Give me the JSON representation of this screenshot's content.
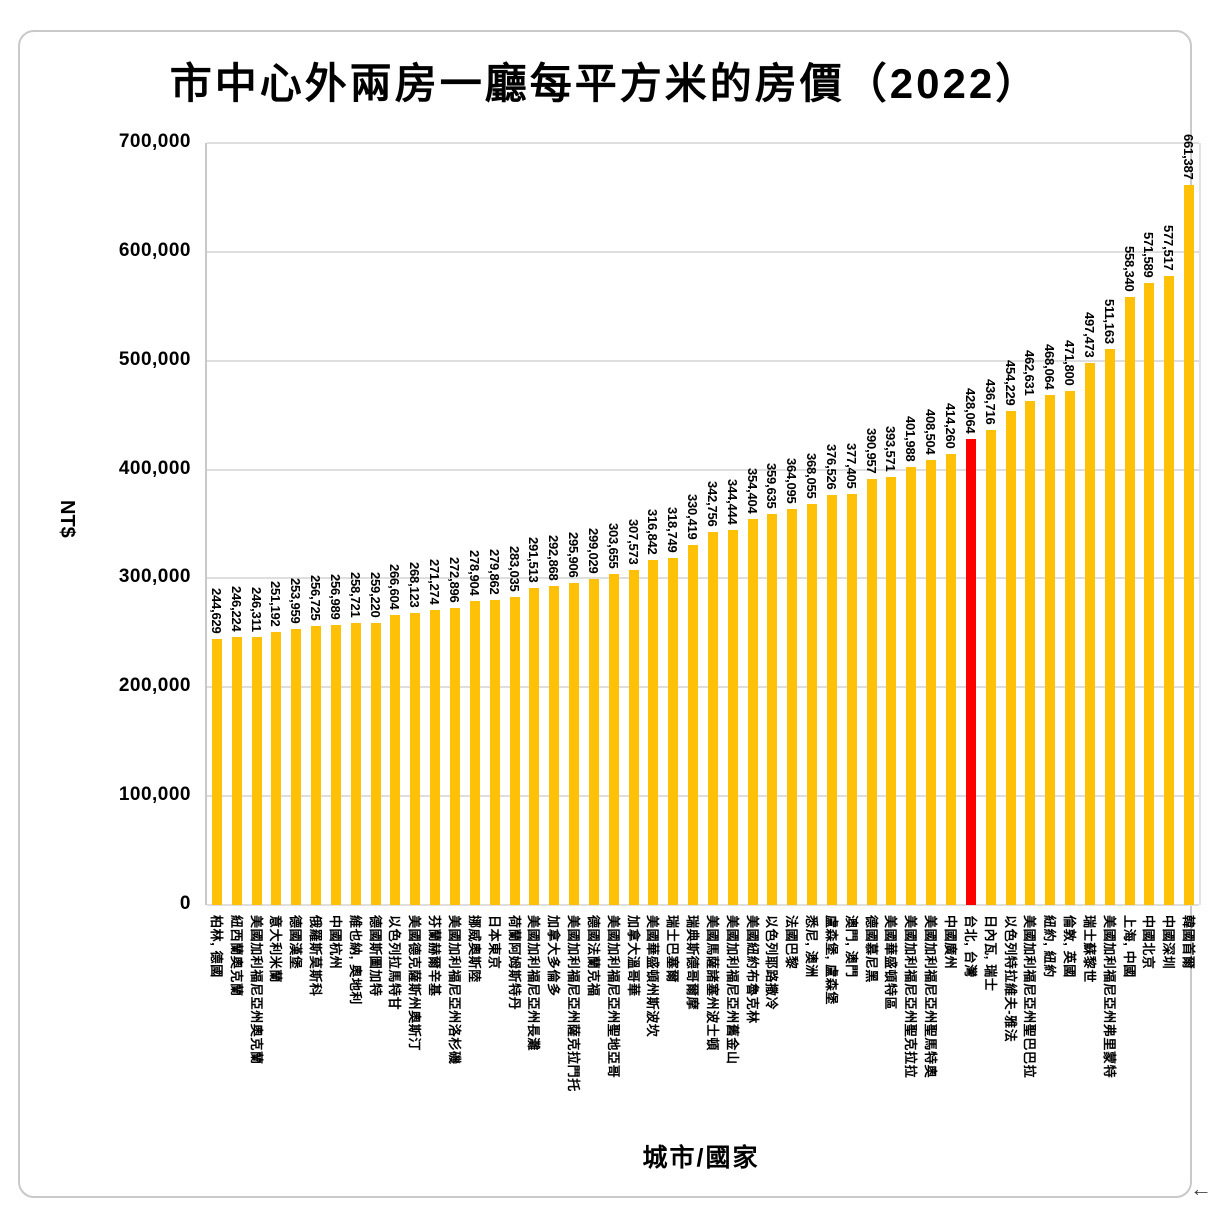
{
  "page": {
    "background": "#ffffff",
    "card_border_color": "#c9c9c9"
  },
  "chart": {
    "title": "市中心外兩房一廳每平方米的房價（2022）",
    "y_axis_title": "NT$",
    "x_axis_title": "城市/國家"
  },
  "chart_data": {
    "type": "bar",
    "title": "市中心外兩房一廳每平方米的房價（2022）",
    "xlabel": "城市/國家",
    "ylabel": "NT$",
    "ylim": [
      0,
      700000
    ],
    "grid": true,
    "legend": false,
    "bar_color": "#FFC107",
    "highlight": {
      "index": 38,
      "category": "台北, 台灣",
      "color": "#FF0000"
    },
    "y_ticks": [
      {
        "value": 0,
        "label": "0"
      },
      {
        "value": 100000,
        "label": "100,000"
      },
      {
        "value": 200000,
        "label": "200,000"
      },
      {
        "value": 300000,
        "label": "300,000"
      },
      {
        "value": 400000,
        "label": "400,000"
      },
      {
        "value": 500000,
        "label": "500,000"
      },
      {
        "value": 600000,
        "label": "600,000"
      },
      {
        "value": 700000,
        "label": "700,000"
      }
    ],
    "categories": [
      "柏林, 德國",
      "紐西蘭奧克蘭",
      "美國加利福尼亞州奧克蘭",
      "意大利米蘭",
      "德國漢堡",
      "俄羅斯莫斯科",
      "中國杭州",
      "維也納, 奧地利",
      "德國斯圖加特",
      "以色列拉馬特甘",
      "美國德克薩斯州奧斯汀",
      "芬蘭赫爾辛基",
      "美國加利福尼亞州洛杉磯",
      "挪威奧斯陸",
      "日本東京",
      "荷蘭阿姆斯特丹",
      "美國加利福尼亞州長灘",
      "加拿大多倫多",
      "美國加利福尼亞州薩克拉門托",
      "德國法蘭克福",
      "美國加利福尼亞州聖地亞哥",
      "加拿大溫哥華",
      "美國華盛頓州斯波坎",
      "瑞士巴塞爾",
      "瑞典斯德哥爾摩",
      "美國馬薩諸塞州波士頓",
      "美國加利福尼亞州舊金山",
      "美國紐約布魯克林",
      "以色列耶路撒冷",
      "法國巴黎",
      "悉尼, 澳洲",
      "盧森堡, 盧森堡",
      "澳門, 澳門",
      "德國慕尼黑",
      "美國華盛頓特區",
      "美國加利福尼亞州聖克拉拉",
      "美國加利福尼亞州聖馬特奧",
      "中國廣州",
      "台北, 台灣",
      "日內瓦, 瑞士",
      "以色列特拉維夫-雅法",
      "美國加利福尼亞州聖巴巴拉",
      "紐約, 紐約",
      "倫敦, 英國",
      "瑞士蘇黎世",
      "美國加利福尼亞州弗里蒙特",
      "上海, 中國",
      "中國北京",
      "中國深圳",
      "韓國首爾"
    ],
    "values": [
      244629,
      246224,
      246311,
      251192,
      253959,
      256725,
      256989,
      258721,
      259220,
      266604,
      268123,
      271274,
      272896,
      278904,
      279862,
      283035,
      291513,
      292868,
      295906,
      299029,
      303655,
      307573,
      316842,
      318749,
      330419,
      342756,
      344444,
      354404,
      359635,
      364095,
      368055,
      376526,
      377405,
      390957,
      393571,
      401988,
      408504,
      414260,
      428064,
      436716,
      454229,
      462631,
      468064,
      471800,
      497473,
      511163,
      558340,
      571589,
      577517,
      661387
    ],
    "value_labels": [
      "244,629",
      "246,224",
      "246,311",
      "251,192",
      "253,959",
      "256,725",
      "256,989",
      "258,721",
      "259,220",
      "266,604",
      "268,123",
      "271,274",
      "272,896",
      "278,904",
      "279,862",
      "283,035",
      "291,513",
      "292,868",
      "295,906",
      "299,029",
      "303,655",
      "307,573",
      "316,842",
      "318,749",
      "330,419",
      "342,756",
      "344,444",
      "354,404",
      "359,635",
      "364,095",
      "368,055",
      "376,526",
      "377,405",
      "390,957",
      "393,571",
      "401,988",
      "408,504",
      "414,260",
      "428,064",
      "436,716",
      "454,229",
      "462,631",
      "468,064",
      "471,800",
      "497,473",
      "511,163",
      "558,340",
      "571,589",
      "577,517",
      "661,387"
    ]
  },
  "decorations": {
    "scroll_arrow": "←"
  }
}
